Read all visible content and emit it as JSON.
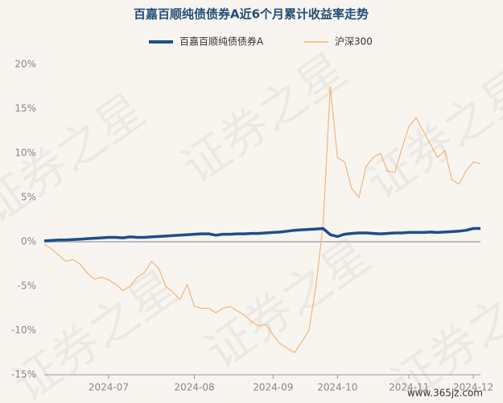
{
  "chart_data": {
    "type": "line",
    "title": "百嘉百顺纯债债券A近6个月累计收益率走势",
    "watermark": "证券之星",
    "source": "www.365jz.com",
    "categories": [
      null,
      null,
      null,
      null,
      null,
      null,
      null,
      null,
      null,
      "2024-07",
      null,
      null,
      null,
      null,
      null,
      null,
      null,
      null,
      null,
      null,
      null,
      "2024-08",
      null,
      null,
      null,
      null,
      null,
      null,
      null,
      null,
      null,
      null,
      "2024-09",
      null,
      null,
      null,
      null,
      null,
      null,
      null,
      null,
      "2024-10",
      null,
      null,
      null,
      null,
      null,
      null,
      null,
      null,
      null,
      "2024-11",
      null,
      null,
      null,
      null,
      null,
      null,
      null,
      null,
      "2024-12",
      null
    ],
    "series": [
      {
        "name": "百嘉百顺纯债债券A",
        "color": "#1f4e8c",
        "values": [
          0.1,
          0.15,
          0.2,
          0.2,
          0.25,
          0.3,
          0.35,
          0.4,
          0.45,
          0.5,
          0.5,
          0.45,
          0.55,
          0.5,
          0.5,
          0.55,
          0.6,
          0.65,
          0.7,
          0.75,
          0.8,
          0.85,
          0.9,
          0.9,
          0.75,
          0.85,
          0.85,
          0.9,
          0.9,
          0.95,
          0.95,
          1.0,
          1.05,
          1.1,
          1.2,
          1.3,
          1.35,
          1.4,
          1.45,
          1.5,
          0.8,
          0.6,
          0.85,
          0.95,
          1.0,
          1.0,
          0.95,
          0.9,
          0.95,
          1.0,
          1.0,
          1.05,
          1.05,
          1.05,
          1.1,
          1.05,
          1.1,
          1.15,
          1.2,
          1.3,
          1.5,
          1.5
        ]
      },
      {
        "name": "沪深300",
        "color": "#f2b47e",
        "values": [
          -0.3,
          -0.8,
          -1.5,
          -2.2,
          -2.0,
          -2.5,
          -3.5,
          -4.2,
          -4.0,
          -4.3,
          -4.8,
          -5.5,
          -5.0,
          -4.0,
          -3.5,
          -2.2,
          -3.0,
          -5.0,
          -5.7,
          -6.5,
          -4.8,
          -7.3,
          -7.5,
          -7.5,
          -8.0,
          -7.5,
          -7.3,
          -7.8,
          -8.3,
          -9.0,
          -9.5,
          -9.3,
          -10.5,
          -11.5,
          -12.0,
          -12.5,
          -11.3,
          -10.0,
          -5.0,
          2.0,
          17.5,
          9.5,
          9.0,
          6.0,
          5.0,
          8.5,
          9.5,
          10.0,
          8.0,
          7.8,
          10.5,
          13.0,
          14.0,
          12.5,
          11.0,
          9.5,
          10.3,
          7.0,
          6.5,
          8.0,
          9.0,
          8.8
        ]
      }
    ],
    "ylim": [
      -15,
      20
    ],
    "yticks": [
      {
        "value": -15,
        "label": "-15%"
      },
      {
        "value": -10,
        "label": "-10%"
      },
      {
        "value": -5,
        "label": "-5%"
      },
      {
        "value": 0,
        "label": "0%"
      },
      {
        "value": 5,
        "label": "5%"
      },
      {
        "value": 10,
        "label": "10%"
      },
      {
        "value": 15,
        "label": "15%"
      },
      {
        "value": 20,
        "label": "20%"
      }
    ],
    "grid": false
  }
}
